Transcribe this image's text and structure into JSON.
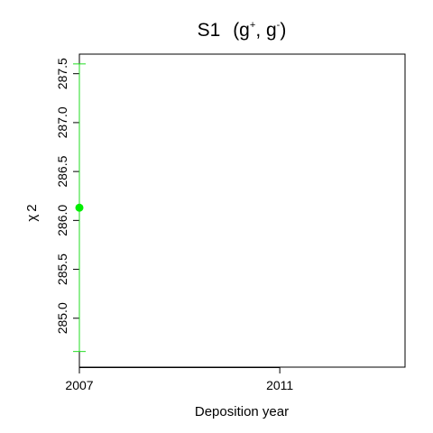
{
  "chart_data": {
    "type": "scatter",
    "title_main": "S1",
    "title_open": "(g",
    "title_sup1": "+",
    "title_comma": ", g",
    "title_sup2": "-",
    "title_close": ")",
    "xlabel": "Deposition year",
    "ylabel_symbol": "χ",
    "ylabel_exp": "2",
    "xlim": [
      2007,
      2013.5
    ],
    "ylim": [
      284.5,
      287.7
    ],
    "x_ticks": [
      2007,
      2011
    ],
    "x_tick_labels": [
      "2007",
      "2011"
    ],
    "y_ticks": [
      285.0,
      285.5,
      286.0,
      286.5,
      287.0,
      287.5
    ],
    "y_tick_labels": [
      "285.0",
      "285.5",
      "286.0",
      "286.5",
      "287.0",
      "287.5"
    ],
    "points": [
      {
        "x": 2007,
        "y": 286.13,
        "lower": 284.66,
        "upper": 287.6
      }
    ],
    "point_color": "#00ee00",
    "errorbar_color": "#22dd22",
    "grid": false
  }
}
